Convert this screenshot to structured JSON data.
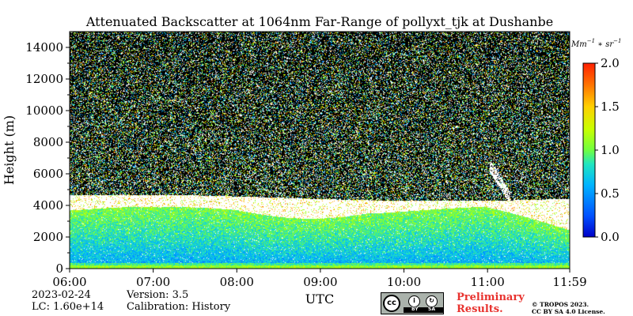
{
  "chart_data": {
    "type": "heatmap",
    "title": "Attenuated Backscatter at 1064nm Far-Range of pollyxt_tjk at Dushanbe",
    "xlabel": "UTC",
    "ylabel": "Height (m)",
    "x_ticks": [
      "06:00",
      "07:00",
      "08:00",
      "09:00",
      "10:00",
      "11:00",
      "11:59"
    ],
    "x_range_hours": [
      6.0,
      11.983
    ],
    "y_ticks": [
      0,
      2000,
      4000,
      6000,
      8000,
      10000,
      12000,
      14000
    ],
    "ylim": [
      0,
      15000
    ],
    "colorbar": {
      "label": "Mm^{-1}*sr^{-1}",
      "range": [
        0.0,
        2.0
      ],
      "ticks": [
        "0.0",
        "0.5",
        "1.0",
        "1.5",
        "2.0"
      ],
      "colormap": "jet"
    },
    "cloud_layer_base_m": 3700,
    "cloud_layer_top_m": 4500,
    "noise_background": "black"
  },
  "info": {
    "date": "2023-02-24",
    "lc": "LC: 1.60e+14",
    "version": "Version: 3.5",
    "calibration": "Calibration: History"
  },
  "license": {
    "cc_text": "cc",
    "by": "BY",
    "sa": "SA",
    "preliminary_line1": "Preliminary",
    "preliminary_line2": "Results.",
    "copyright_line1": "© TROPOS 2023.",
    "copyright_line2": "CC BY SA 4.0 License."
  }
}
